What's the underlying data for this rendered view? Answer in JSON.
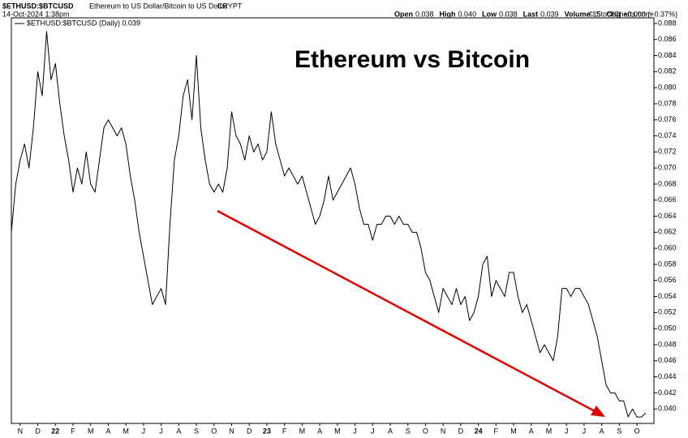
{
  "chart_data": {
    "type": "line",
    "title": "Ethereum vs Bitcoin",
    "header": {
      "symbol": "$ETHUSD:$BTCUSD",
      "description": "Ethereum to US Dollar/Bitcoin to US Dollar",
      "exchange": "CRYPT",
      "timestamp": "14-Oct-2024 1:38pm",
      "quote": [
        "Open",
        "0.038",
        "High",
        "0.040",
        "Low",
        "0.038",
        "Last",
        "0.039",
        "Volume",
        "15",
        "Chg",
        "+0.000 (+0.37%)"
      ],
      "credit": "© StockCharts.com"
    },
    "legend_text": "$ETHUSD:$BTCUSD (Daily) 0.039",
    "categories": [
      null,
      null,
      "N",
      null,
      null,
      null,
      "D",
      null,
      null,
      null,
      "22",
      null,
      null,
      null,
      "F",
      null,
      null,
      null,
      "M",
      null,
      null,
      null,
      "A",
      null,
      null,
      null,
      "M",
      null,
      null,
      null,
      "J",
      null,
      null,
      null,
      "J",
      null,
      null,
      null,
      "A",
      null,
      null,
      null,
      "S",
      null,
      null,
      null,
      "O",
      null,
      null,
      null,
      "N",
      null,
      null,
      null,
      "D",
      null,
      null,
      null,
      "23",
      null,
      null,
      null,
      "F",
      null,
      null,
      null,
      "M",
      null,
      null,
      null,
      "A",
      null,
      null,
      null,
      "M",
      null,
      null,
      null,
      "J",
      null,
      null,
      null,
      "J",
      null,
      null,
      null,
      "A",
      null,
      null,
      null,
      "S",
      null,
      null,
      null,
      "O",
      null,
      null,
      null,
      "N",
      null,
      null,
      null,
      "D",
      null,
      null,
      null,
      "24",
      null,
      null,
      null,
      "F",
      null,
      null,
      null,
      "M",
      null,
      null,
      null,
      "A",
      null,
      null,
      null,
      "M",
      null,
      null,
      null,
      "J",
      null,
      null,
      null,
      "J",
      null,
      null,
      null,
      "A",
      null,
      null,
      null,
      "S",
      null,
      null,
      null,
      "O",
      null,
      null
    ],
    "series": [
      {
        "name": "$ETHUSD:$BTCUSD",
        "color": "#000000",
        "values": [
          0.062,
          0.068,
          0.071,
          0.073,
          0.07,
          0.075,
          0.082,
          0.079,
          0.087,
          0.081,
          0.083,
          0.078,
          0.074,
          0.071,
          0.067,
          0.07,
          0.068,
          0.072,
          0.068,
          0.067,
          0.071,
          0.075,
          0.076,
          0.075,
          0.074,
          0.075,
          0.073,
          0.069,
          0.066,
          0.062,
          0.059,
          0.056,
          0.053,
          0.054,
          0.055,
          0.053,
          0.063,
          0.071,
          0.074,
          0.079,
          0.081,
          0.076,
          0.084,
          0.075,
          0.071,
          0.068,
          0.067,
          0.068,
          0.067,
          0.07,
          0.077,
          0.074,
          0.073,
          0.071,
          0.074,
          0.072,
          0.073,
          0.071,
          0.072,
          0.077,
          0.073,
          0.071,
          0.069,
          0.07,
          0.069,
          0.068,
          0.069,
          0.067,
          0.065,
          0.063,
          0.064,
          0.066,
          0.069,
          0.066,
          0.067,
          0.068,
          0.069,
          0.07,
          0.068,
          0.065,
          0.063,
          0.063,
          0.061,
          0.063,
          0.063,
          0.064,
          0.064,
          0.063,
          0.064,
          0.063,
          0.063,
          0.062,
          0.062,
          0.06,
          0.057,
          0.056,
          0.054,
          0.052,
          0.055,
          0.054,
          0.053,
          0.055,
          0.053,
          0.054,
          0.051,
          0.052,
          0.054,
          0.058,
          0.059,
          0.054,
          0.056,
          0.055,
          0.054,
          0.057,
          0.057,
          0.054,
          0.052,
          0.053,
          0.051,
          0.049,
          0.047,
          0.048,
          0.047,
          0.046,
          0.049,
          0.055,
          0.055,
          0.054,
          0.055,
          0.055,
          0.054,
          0.053,
          0.051,
          0.049,
          0.046,
          0.043,
          0.042,
          0.042,
          0.041,
          0.041,
          0.039,
          0.04,
          0.039,
          0.039,
          0.0395
        ]
      }
    ],
    "ylim": [
      0.0382,
      0.0887
    ],
    "yticks": [
      {
        "value": 0.04,
        "label": "0.040"
      },
      {
        "value": 0.042,
        "label": "0.042"
      },
      {
        "value": 0.044,
        "label": "0.044"
      },
      {
        "value": 0.046,
        "label": "0.046"
      },
      {
        "value": 0.048,
        "label": "0.048"
      },
      {
        "value": 0.05,
        "label": "0.050"
      },
      {
        "value": 0.052,
        "label": "0.052"
      },
      {
        "value": 0.054,
        "label": "0.054"
      },
      {
        "value": 0.056,
        "label": "0.056"
      },
      {
        "value": 0.058,
        "label": "0.058"
      },
      {
        "value": 0.06,
        "label": "0.060"
      },
      {
        "value": 0.062,
        "label": "0.062"
      },
      {
        "value": 0.064,
        "label": "0.064"
      },
      {
        "value": 0.066,
        "label": "0.066"
      },
      {
        "value": 0.068,
        "label": "0.068"
      },
      {
        "value": 0.07,
        "label": "0.070"
      },
      {
        "value": 0.072,
        "label": "0.072"
      },
      {
        "value": 0.074,
        "label": "0.074"
      },
      {
        "value": 0.076,
        "label": "0.076"
      },
      {
        "value": 0.078,
        "label": "0.078"
      },
      {
        "value": 0.08,
        "label": "0.080"
      },
      {
        "value": 0.082,
        "label": "0.082"
      },
      {
        "value": 0.084,
        "label": "0.084"
      },
      {
        "value": 0.086,
        "label": "0.086"
      },
      {
        "value": 0.088,
        "label": "0.088"
      }
    ],
    "grid": false
  }
}
